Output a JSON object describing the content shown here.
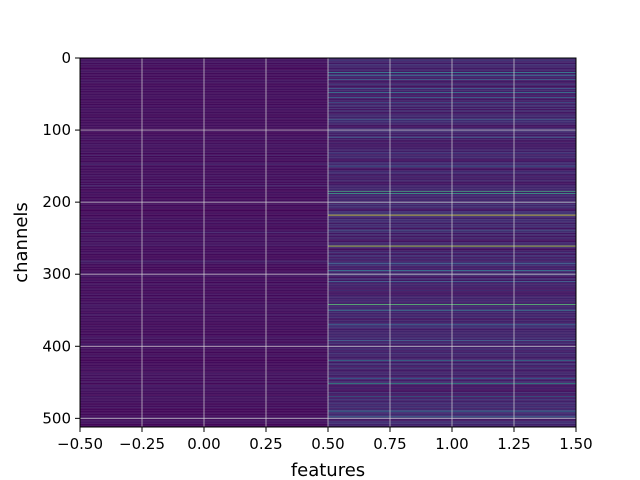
{
  "chart_data": {
    "type": "heatmap",
    "title": "",
    "xlabel": "features",
    "ylabel": "channels",
    "xlim": [
      -0.5,
      1.5
    ],
    "ylim": [
      512,
      0
    ],
    "y_inverted": true,
    "colormap": "viridis",
    "grid": true,
    "n_channels": 512,
    "n_features": 2,
    "xticks": [
      -0.5,
      -0.25,
      0.0,
      0.25,
      0.5,
      0.75,
      1.0,
      1.25,
      1.5
    ],
    "xtick_labels": [
      "−0.50",
      "−0.25",
      "0.00",
      "0.25",
      "0.50",
      "0.75",
      "1.00",
      "1.25",
      "1.50"
    ],
    "yticks": [
      0,
      100,
      200,
      300,
      400,
      500
    ],
    "ytick_labels": [
      "0",
      "100",
      "200",
      "300",
      "400",
      "500"
    ],
    "columns": [
      {
        "feature": 0,
        "base_level": 0.04,
        "highlights": [
          {
            "channel": 135,
            "level": 0.12
          },
          {
            "channel": 148,
            "level": 0.1
          },
          {
            "channel": 177,
            "level": 0.11
          },
          {
            "channel": 242,
            "level": 0.12
          },
          {
            "channel": 283,
            "level": 0.13
          },
          {
            "channel": 398,
            "level": 0.14
          },
          {
            "channel": 455,
            "level": 0.1
          },
          {
            "channel": 470,
            "level": 0.09
          }
        ]
      },
      {
        "feature": 1,
        "base_level": 0.1,
        "highlights": [
          {
            "channel": 20,
            "level": 0.45
          },
          {
            "channel": 24,
            "level": 0.35
          },
          {
            "channel": 30,
            "level": 0.3
          },
          {
            "channel": 42,
            "level": 0.3
          },
          {
            "channel": 48,
            "level": 0.4
          },
          {
            "channel": 55,
            "level": 0.3
          },
          {
            "channel": 62,
            "level": 0.28
          },
          {
            "channel": 85,
            "level": 0.3
          },
          {
            "channel": 110,
            "level": 0.3
          },
          {
            "channel": 150,
            "level": 0.3
          },
          {
            "channel": 185,
            "level": 0.6
          },
          {
            "channel": 188,
            "level": 0.55
          },
          {
            "channel": 200,
            "level": 0.3
          },
          {
            "channel": 218,
            "level": 0.95
          },
          {
            "channel": 240,
            "level": 0.3
          },
          {
            "channel": 261,
            "level": 0.9
          },
          {
            "channel": 285,
            "level": 0.3
          },
          {
            "channel": 295,
            "level": 0.4
          },
          {
            "channel": 310,
            "level": 0.3
          },
          {
            "channel": 342,
            "level": 0.7
          },
          {
            "channel": 350,
            "level": 0.4
          },
          {
            "channel": 370,
            "level": 0.3
          },
          {
            "channel": 392,
            "level": 0.3
          },
          {
            "channel": 420,
            "level": 0.4
          },
          {
            "channel": 445,
            "level": 0.3
          },
          {
            "channel": 452,
            "level": 0.55
          },
          {
            "channel": 470,
            "level": 0.35
          },
          {
            "channel": 490,
            "level": 0.4
          },
          {
            "channel": 498,
            "level": 0.35
          }
        ]
      }
    ]
  }
}
